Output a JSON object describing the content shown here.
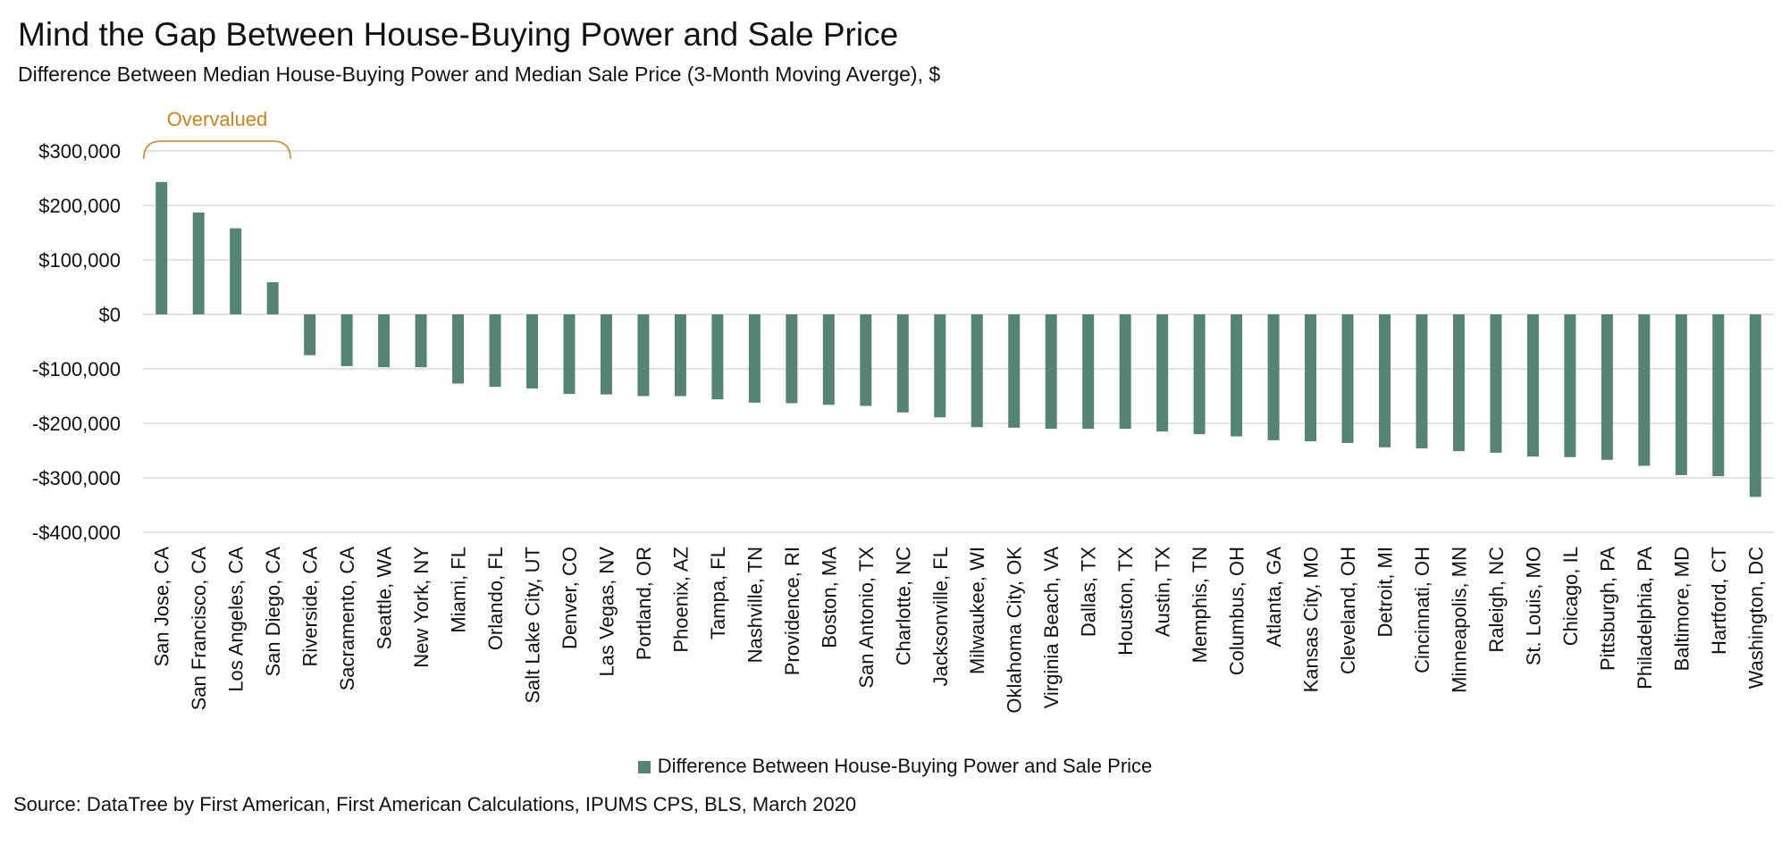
{
  "title": "Mind the Gap Between House-Buying Power and Sale Price",
  "subtitle": "Difference Between Median House-Buying Power and Median Sale Price (3-Month Moving Averge), $",
  "source": "Source: DataTree by First American, First American Calculations, IPUMS CPS, BLS, March 2020",
  "legend": {
    "label": "Difference Between House-Buying Power and Sale Price",
    "placement": "bottom"
  },
  "colors": {
    "bar": "#568473",
    "grid": "#d9d9d9",
    "annotation": "#c8861c"
  },
  "annotation": {
    "text": "Overvalued",
    "span_categories": [
      "San Jose, CA",
      "San Diego, CA"
    ]
  },
  "chart_data": {
    "type": "bar",
    "title": "Mind the Gap Between House-Buying Power and Sale Price",
    "subtitle": "Difference Between Median House-Buying Power and Median Sale Price (3-Month Moving Averge), $",
    "xlabel": "",
    "ylabel": "",
    "ylim": [
      -400000,
      300000
    ],
    "yticks": [
      300000,
      200000,
      100000,
      0,
      -100000,
      -200000,
      -300000,
      -400000
    ],
    "ytick_labels": [
      "$300,000",
      "$200,000",
      "$100,000",
      "$0",
      "-$100,000",
      "-$200,000",
      "-$300,000",
      "-$400,000"
    ],
    "grid": true,
    "legend_placement": "bottom",
    "categories": [
      "San Jose, CA",
      "San Francisco, CA",
      "Los Angeles, CA",
      "San Diego, CA",
      "Riverside, CA",
      "Sacramento, CA",
      "Seattle, WA",
      "New York, NY",
      "Miami, FL",
      "Orlando, FL",
      "Salt Lake City, UT",
      "Denver, CO",
      "Las Vegas, NV",
      "Portland, OR",
      "Phoenix, AZ",
      "Tampa, FL",
      "Nashville, TN",
      "Providence, RI",
      "Boston, MA",
      "San Antonio, TX",
      "Charlotte, NC",
      "Jacksonville, FL",
      "Milwaukee, WI",
      "Oklahoma City, OK",
      "Virginia Beach, VA",
      "Dallas, TX",
      "Houston, TX",
      "Austin, TX",
      "Memphis, TN",
      "Columbus, OH",
      "Atlanta, GA",
      "Kansas City, MO",
      "Cleveland, OH",
      "Detroit, MI",
      "Cincinnati, OH",
      "Minneapolis, MN",
      "Raleigh, NC",
      "St. Louis, MO",
      "Chicago, IL",
      "Pittsburgh, PA",
      "Philadelphia, PA",
      "Baltimore, MD",
      "Hartford, CT",
      "Washington, DC"
    ],
    "series": [
      {
        "name": "Difference Between House-Buying Power and Sale Price",
        "values": [
          243000,
          187000,
          158000,
          59000,
          -75000,
          -95000,
          -97000,
          -97000,
          -127000,
          -133000,
          -136000,
          -146000,
          -147000,
          -150000,
          -150000,
          -156000,
          -162000,
          -163000,
          -166000,
          -168000,
          -180000,
          -189000,
          -207000,
          -208000,
          -210000,
          -210000,
          -210000,
          -215000,
          -220000,
          -224000,
          -231000,
          -233000,
          -236000,
          -244000,
          -246000,
          -251000,
          -254000,
          -261000,
          -262000,
          -267000,
          -278000,
          -295000,
          -297000,
          -335000
        ]
      }
    ]
  }
}
